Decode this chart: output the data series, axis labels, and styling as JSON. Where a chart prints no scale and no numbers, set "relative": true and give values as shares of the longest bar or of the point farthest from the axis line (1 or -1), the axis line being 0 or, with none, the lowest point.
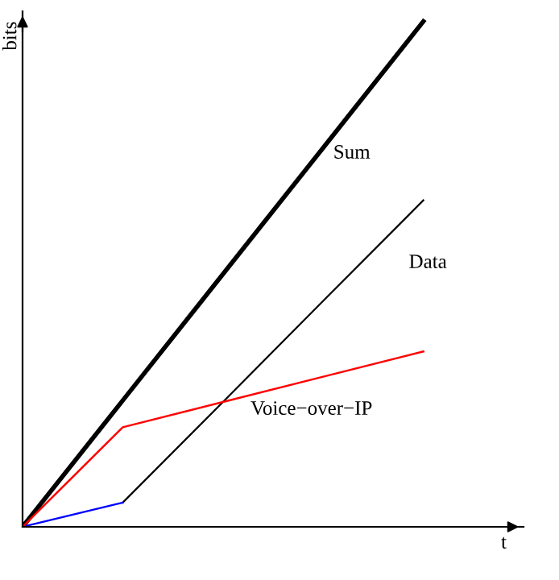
{
  "chart_data": {
    "type": "line",
    "relative": true,
    "xlabel": "t",
    "ylabel": "bits",
    "legend": false,
    "marker": "none",
    "line_style": "solid",
    "categories": [
      null,
      null,
      null,
      null,
      null
    ],
    "series": [
      {
        "name": "Sum",
        "color": "#000000",
        "values": [
          0,
          0.25,
          0.5,
          0.75,
          1
        ]
      },
      {
        "name": "Data",
        "color": "#000000",
        "values": [
          null,
          0.048,
          0.247,
          0.447,
          0.646
        ]
      },
      {
        "color": "#0000ff",
        "values": [
          0,
          0.048,
          null,
          null,
          null
        ]
      },
      {
        "name": "Voice−over−IP",
        "color": "#ff0000",
        "values": [
          0,
          0.197,
          0.247,
          0.297,
          0.347
        ]
      }
    ]
  }
}
